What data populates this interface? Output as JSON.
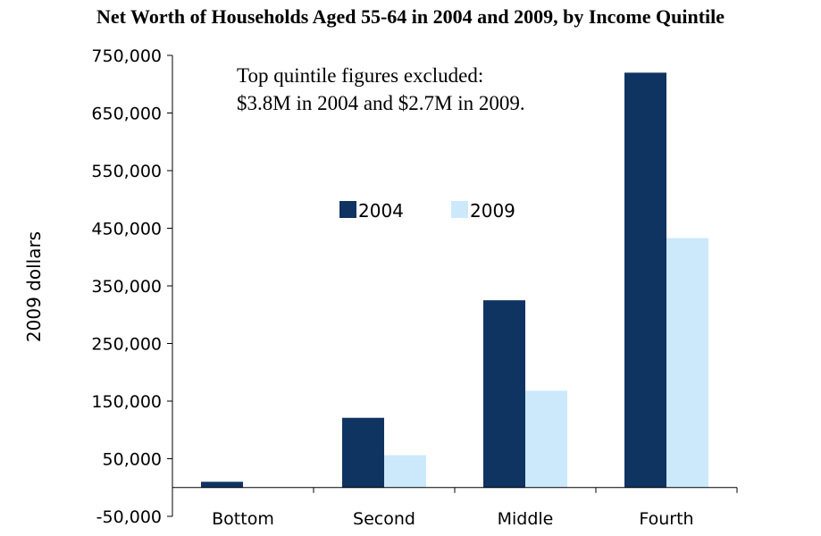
{
  "chart_data": {
    "type": "bar",
    "title": "Net Worth of Households Aged 55-64 in 2004 and 2009, by Income Quintile",
    "ylabel": "2009 dollars",
    "xlabel": "",
    "ylim": [
      -50000,
      750000
    ],
    "yticks": [
      -50000,
      50000,
      150000,
      250000,
      350000,
      450000,
      550000,
      650000,
      750000
    ],
    "ytick_labels": [
      "-50,000",
      "50,000",
      "150,000",
      "250,000",
      "350,000",
      "450,000",
      "550,000",
      "650,000",
      "750,000"
    ],
    "categories": [
      "Bottom",
      "Second",
      "Middle",
      "Fourth"
    ],
    "series": [
      {
        "name": "2004",
        "color": "#0f3461",
        "values": [
          10000,
          121000,
          325000,
          720000
        ]
      },
      {
        "name": "2009",
        "color": "#cce9fb",
        "values": [
          0,
          56000,
          168000,
          433000
        ]
      }
    ],
    "annotation": {
      "line1": "Top quintile figures excluded:",
      "line2": "$3.8M in 2004 and $2.7M in 2009."
    },
    "legend_position": "top-center",
    "grid": false
  }
}
